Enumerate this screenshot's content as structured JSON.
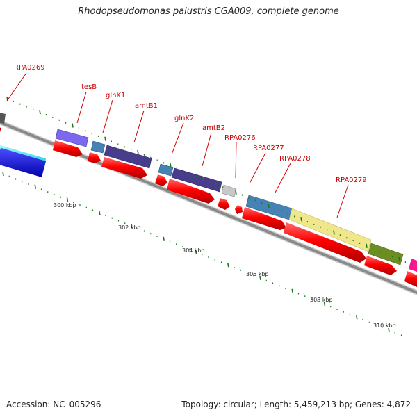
{
  "title": "Rhodopseudomonas palustris CGA009, complete genome",
  "footer": {
    "accession": "Accession: NC_005296",
    "stats": "Topology: circular; Length: 5,459,213 bp; Genes: 4,872"
  },
  "colors": {
    "backbone": "#8a8a8a",
    "cds_red": "#ff0000",
    "tick": "#1a7a1a",
    "label_red": "#cc0000"
  },
  "gene_labels": [
    "RPA0269",
    "tesB",
    "glnK1",
    "amtB1",
    "glnK2",
    "amtB2",
    "RPA0276",
    "RPA0277",
    "RPA0278",
    "RPA0279"
  ],
  "scale_labels": [
    "300 kbp",
    "302 kbp",
    "304 kbp",
    "306 kbp",
    "308 kbp",
    "310 kbp"
  ]
}
